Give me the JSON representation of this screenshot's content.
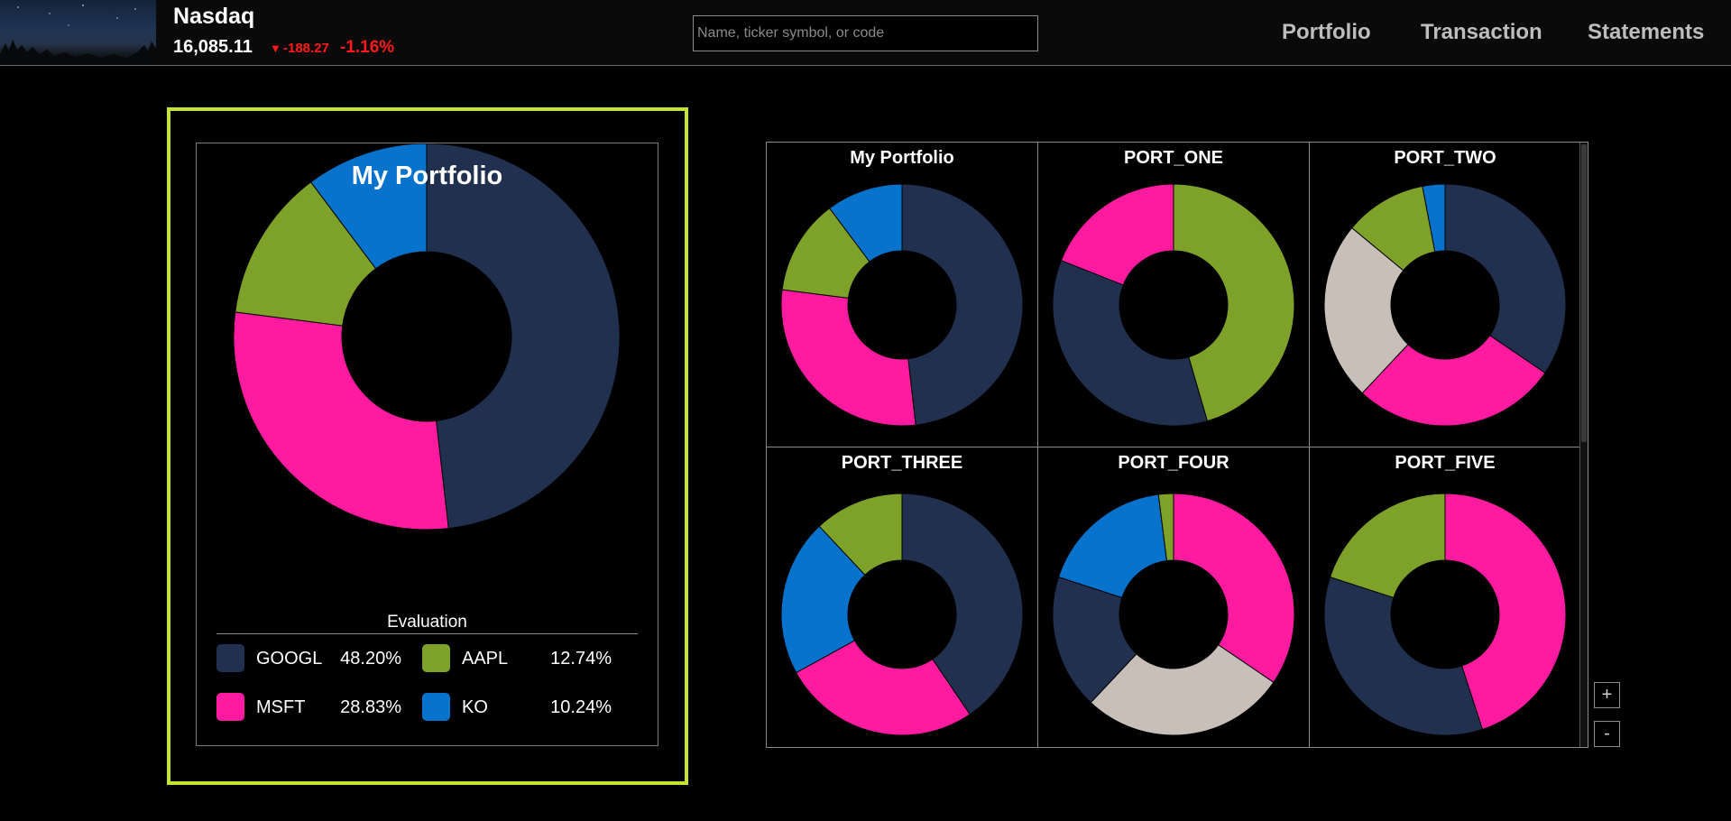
{
  "header": {
    "index_name": "Nasdaq",
    "index_value": "16,085.11",
    "change_glyph": "▼",
    "change_value": "-188.27",
    "change_pct": "-1.16%",
    "search_placeholder": "Name, ticker symbol, or code",
    "nav": [
      "Portfolio",
      "Transaction",
      "Statements"
    ]
  },
  "colors": {
    "accent_frame": "#c4e52f",
    "negative": "#ff1a1a",
    "navy": "#22304f",
    "pink": "#ff1ba0",
    "green": "#7da129",
    "blue": "#0773cc",
    "beige": "#c9bfb9"
  },
  "featured": {
    "title": "My Portfolio",
    "legend_title": "Evaluation",
    "legend": [
      {
        "name": "GOOGL",
        "pct": "48.20%",
        "color": "#22304f"
      },
      {
        "name": "AAPL",
        "pct": "12.74%",
        "color": "#7da129"
      },
      {
        "name": "MSFT",
        "pct": "28.83%",
        "color": "#ff1ba0"
      },
      {
        "name": "KO",
        "pct": "10.24%",
        "color": "#0773cc"
      }
    ]
  },
  "chart_data": [
    {
      "type": "pie",
      "title": "My Portfolio",
      "categories": [
        "GOOGL",
        "MSFT",
        "AAPL",
        "KO"
      ],
      "values": [
        48.2,
        28.83,
        12.74,
        10.24
      ],
      "colors": [
        "#22304f",
        "#ff1ba0",
        "#7da129",
        "#0773cc"
      ]
    },
    {
      "type": "pie",
      "title": "My Portfolio",
      "values": [
        48.2,
        28.83,
        12.74,
        10.24
      ],
      "colors": [
        "#22304f",
        "#ff1ba0",
        "#7da129",
        "#0773cc"
      ]
    },
    {
      "type": "pie",
      "title": "PORT_ONE",
      "values": [
        45.5,
        35.5,
        19
      ],
      "colors": [
        "#7da129",
        "#22304f",
        "#ff1ba0"
      ]
    },
    {
      "type": "pie",
      "title": "PORT_TWO",
      "values": [
        34.5,
        27.5,
        24,
        11,
        3
      ],
      "colors": [
        "#22304f",
        "#ff1ba0",
        "#c9bfb9",
        "#7da129",
        "#0773cc"
      ]
    },
    {
      "type": "pie",
      "title": "PORT_THREE",
      "values": [
        40.5,
        26.5,
        21,
        12
      ],
      "colors": [
        "#22304f",
        "#ff1ba0",
        "#0773cc",
        "#7da129"
      ]
    },
    {
      "type": "pie",
      "title": "PORT_FOUR",
      "values": [
        34.5,
        27.5,
        18,
        18,
        2
      ],
      "colors": [
        "#ff1ba0",
        "#c9bfb9",
        "#22304f",
        "#0773cc",
        "#7da129"
      ]
    },
    {
      "type": "pie",
      "title": "PORT_FIVE",
      "values": [
        45,
        35,
        20
      ],
      "colors": [
        "#ff1ba0",
        "#22304f",
        "#7da129"
      ]
    }
  ],
  "zoom": {
    "plus": "+",
    "minus": "-"
  }
}
